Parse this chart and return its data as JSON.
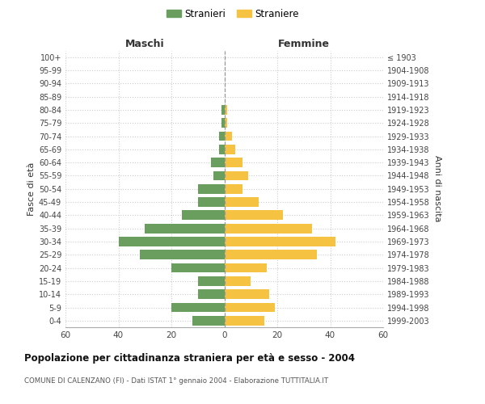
{
  "age_groups": [
    "0-4",
    "5-9",
    "10-14",
    "15-19",
    "20-24",
    "25-29",
    "30-34",
    "35-39",
    "40-44",
    "45-49",
    "50-54",
    "55-59",
    "60-64",
    "65-69",
    "70-74",
    "75-79",
    "80-84",
    "85-89",
    "90-94",
    "95-99",
    "100+"
  ],
  "birth_years": [
    "1999-2003",
    "1994-1998",
    "1989-1993",
    "1984-1988",
    "1979-1983",
    "1974-1978",
    "1969-1973",
    "1964-1968",
    "1959-1963",
    "1954-1958",
    "1949-1953",
    "1944-1948",
    "1939-1943",
    "1934-1938",
    "1929-1933",
    "1924-1928",
    "1919-1923",
    "1914-1918",
    "1909-1913",
    "1904-1908",
    "≤ 1903"
  ],
  "males": [
    12,
    20,
    10,
    10,
    20,
    32,
    40,
    30,
    16,
    10,
    10,
    4,
    5,
    2,
    2,
    1,
    1,
    0,
    0,
    0,
    0
  ],
  "females": [
    15,
    19,
    17,
    10,
    16,
    35,
    42,
    33,
    22,
    13,
    7,
    9,
    7,
    4,
    3,
    1,
    1,
    0,
    0,
    0,
    0
  ],
  "male_color": "#6a9e5e",
  "female_color": "#f5c242",
  "grid_color": "#cccccc",
  "center_line_color": "#999999",
  "title": "Popolazione per cittadinanza straniera per età e sesso - 2004",
  "subtitle": "COMUNE DI CALENZANO (FI) - Dati ISTAT 1° gennaio 2004 - Elaborazione TUTTITALIA.IT",
  "header_left": "Maschi",
  "header_right": "Femmine",
  "ylabel_left": "Fasce di età",
  "ylabel_right": "Anni di nascita",
  "legend_males": "Stranieri",
  "legend_females": "Straniere",
  "xlim": 60,
  "bg_color": "#ffffff"
}
